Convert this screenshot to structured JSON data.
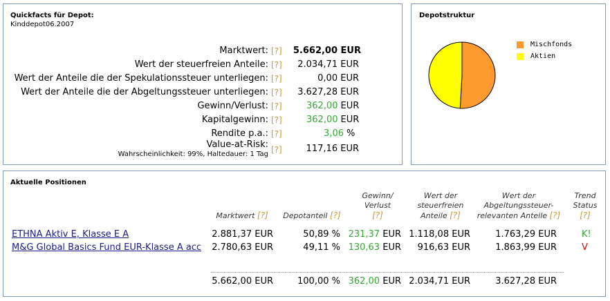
{
  "quickfacts": {
    "title": "Quickfacts für Depot:",
    "depot_name": "Kinddepot06.2007",
    "help": "[?]",
    "rows": [
      {
        "label": "Marktwert:",
        "value": "5.662,00 EUR"
      },
      {
        "label": "Wert der steuerfreien Anteile:",
        "value": "2.034,71 EUR"
      },
      {
        "label": "Wert der Anteile die der Spekulationssteuer unterliegen:",
        "value": "0,00 EUR"
      },
      {
        "label": "Wert der Anteile die der Abgeltungssteuer unterliegen:",
        "value": "3.627,28 EUR"
      },
      {
        "label": "Gewinn/Verlust:",
        "value": "362,00",
        "unit": "EUR"
      },
      {
        "label": "Kapitalgewinn:",
        "value": "362,00",
        "unit": "EUR"
      },
      {
        "label": "Rendite p.a.:",
        "value": "3,06",
        "unit": "%"
      }
    ],
    "var": {
      "label": "Value-at-Risk:",
      "sublabel": "Wahrscheinlichkeit: 99%, Haltedauer: 1 Tag",
      "value": "117,16 EUR"
    }
  },
  "depotstruktur": {
    "title": "Depotstruktur",
    "chart_data": {
      "type": "pie",
      "categories": [
        "Mischfonds",
        "Aktien"
      ],
      "values": [
        50.89,
        49.11
      ],
      "colors": [
        "#ff9a2e",
        "#ffff00"
      ]
    }
  },
  "positions": {
    "title": "Aktuelle Positionen",
    "help": "[?]",
    "headers": {
      "marktwert": "Marktwert",
      "depotanteil": "Depotanteil",
      "gewinn": [
        "Gewinn/",
        "Verlust"
      ],
      "steuerfrei": [
        "Wert der",
        "steuerfreien",
        "Anteile"
      ],
      "abgeltung": [
        "Wert der",
        "Abgeltungssteuer-",
        "relevanten Anteile"
      ],
      "trend": [
        "Trend",
        "Status"
      ]
    },
    "rows": [
      {
        "name": "ETHNA Aktiv E, Klasse E A",
        "marktwert": "2.881,37 EUR",
        "anteil": "50,89 %",
        "gewinn": "231,37",
        "gewinn_unit": "EUR",
        "steuerfrei": "1.118,08 EUR",
        "abgeltung": "1.763,29 EUR",
        "trend": "K!"
      },
      {
        "name": "M&G Global Basics Fund EUR-Klasse A acc",
        "marktwert": "2.780,63 EUR",
        "anteil": "49,11 %",
        "gewinn": "130,63",
        "gewinn_unit": "EUR",
        "steuerfrei": "916,63 EUR",
        "abgeltung": "1.863,99 EUR",
        "trend": "V"
      }
    ],
    "totals": {
      "marktwert": "5.662,00 EUR",
      "anteil": "100,00 %",
      "gewinn": "362,00",
      "gewinn_unit": "EUR",
      "steuerfrei": "2.034,71 EUR",
      "abgeltung": "3.627,28 EUR"
    }
  }
}
